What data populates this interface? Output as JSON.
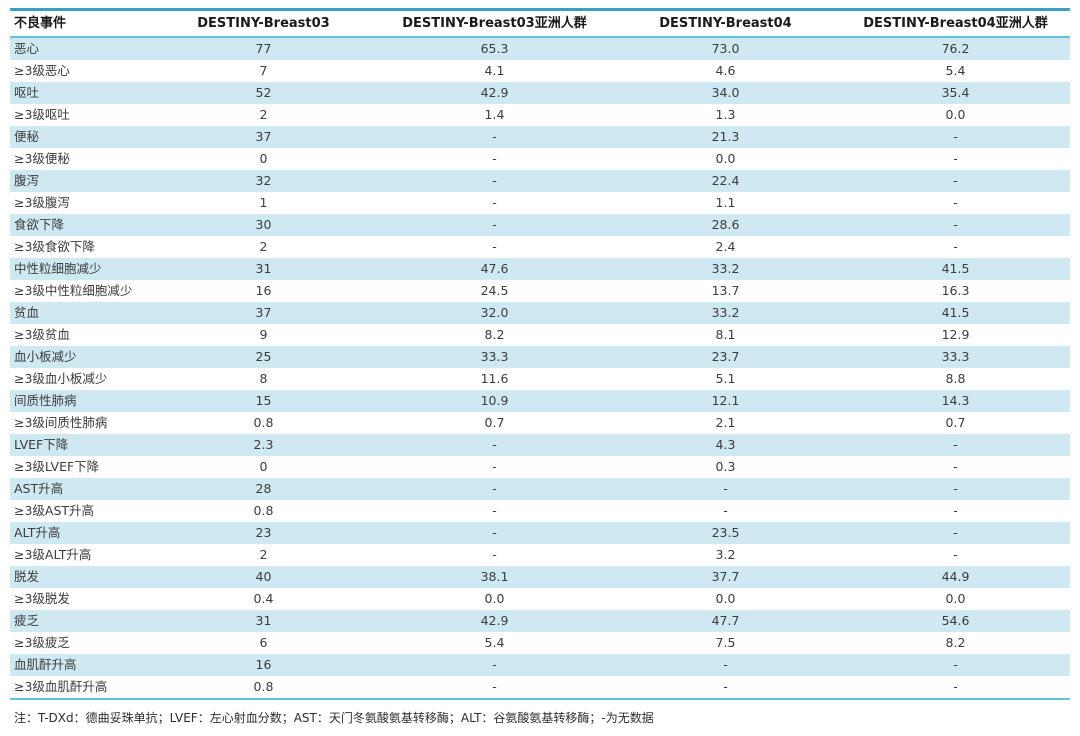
{
  "table": {
    "columns": [
      "不良事件",
      "DESTINY-Breast03",
      "DESTINY-Breast03亚洲人群",
      "DESTINY-Breast04",
      "DESTINY-Breast04亚洲人群"
    ],
    "rows": [
      [
        "恶心",
        "77",
        "65.3",
        "73.0",
        "76.2"
      ],
      [
        "≥3级恶心",
        "7",
        "4.1",
        "4.6",
        "5.4"
      ],
      [
        "呕吐",
        "52",
        "42.9",
        "34.0",
        "35.4"
      ],
      [
        "≥3级呕吐",
        "2",
        "1.4",
        "1.3",
        "0.0"
      ],
      [
        "便秘",
        "37",
        "-",
        "21.3",
        "-"
      ],
      [
        "≥3级便秘",
        "0",
        "-",
        "0.0",
        "-"
      ],
      [
        "腹泻",
        "32",
        "-",
        "22.4",
        "-"
      ],
      [
        "≥3级腹泻",
        "1",
        "-",
        "1.1",
        "-"
      ],
      [
        "食欲下降",
        "30",
        "-",
        "28.6",
        "-"
      ],
      [
        "≥3级食欲下降",
        "2",
        "-",
        "2.4",
        "-"
      ],
      [
        "中性粒细胞减少",
        "31",
        "47.6",
        "33.2",
        "41.5"
      ],
      [
        "≥3级中性粒细胞减少",
        "16",
        "24.5",
        "13.7",
        "16.3"
      ],
      [
        "贫血",
        "37",
        "32.0",
        "33.2",
        "41.5"
      ],
      [
        "≥3级贫血",
        "9",
        "8.2",
        "8.1",
        "12.9"
      ],
      [
        "血小板减少",
        "25",
        "33.3",
        "23.7",
        "33.3"
      ],
      [
        "≥3级血小板减少",
        "8",
        "11.6",
        "5.1",
        "8.8"
      ],
      [
        "间质性肺病",
        "15",
        "10.9",
        "12.1",
        "14.3"
      ],
      [
        "≥3级间质性肺病",
        "0.8",
        "0.7",
        "2.1",
        "0.7"
      ],
      [
        "LVEF下降",
        "2.3",
        "-",
        "4.3",
        "-"
      ],
      [
        "≥3级LVEF下降",
        "0",
        "-",
        "0.3",
        "-"
      ],
      [
        "AST升高",
        "28",
        "-",
        "-",
        "-"
      ],
      [
        "≥3级AST升高",
        "0.8",
        "-",
        "-",
        "-"
      ],
      [
        "ALT升高",
        "23",
        "-",
        "23.5",
        "-"
      ],
      [
        "≥3级ALT升高",
        "2",
        "-",
        "3.2",
        "-"
      ],
      [
        "脱发",
        "40",
        "38.1",
        "37.7",
        "44.9"
      ],
      [
        "≥3级脱发",
        "0.4",
        "0.0",
        "0.0",
        "0.0"
      ],
      [
        "疲乏",
        "31",
        "42.9",
        "47.7",
        "54.6"
      ],
      [
        "≥3级疲乏",
        "6",
        "5.4",
        "7.5",
        "8.2"
      ],
      [
        "血肌酐升高",
        "16",
        "-",
        "-",
        "-"
      ],
      [
        "≥3级血肌酐升高",
        "0.8",
        "-",
        "-",
        "-"
      ]
    ]
  },
  "note": "注：T-DXd：德曲妥珠单抗；LVEF：左心射血分数；AST：天门冬氨酸氨基转移酶；ALT：谷氨酸氨基转移酶；-为无数据",
  "colors": {
    "top_border": "#3b9ec4",
    "rule_line": "#5fc4da",
    "row_stripe": "#cfe9f2",
    "header_text": "#1a1a1a",
    "body_text": "#3c3c3c"
  }
}
